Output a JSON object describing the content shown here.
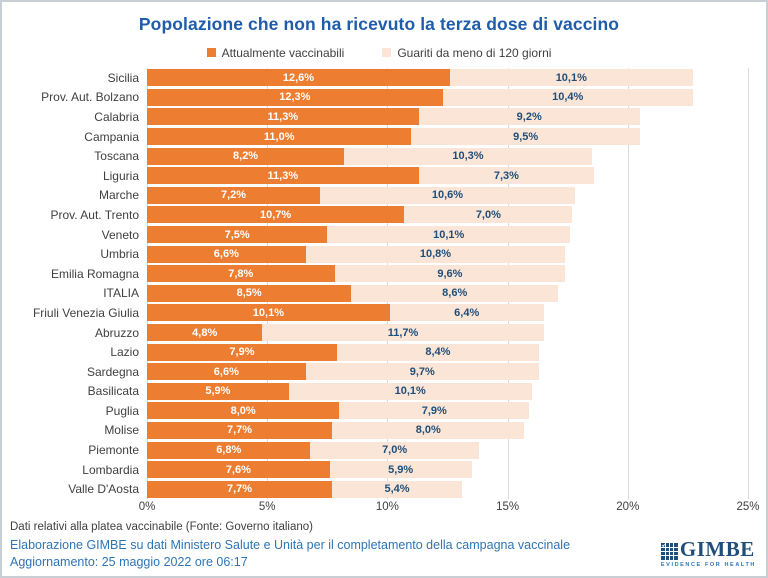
{
  "title": "Popolazione che non ha ricevuto la terza dose di vaccino",
  "legend": [
    {
      "label": "Attualmente vaccinabili",
      "color": "#ED7D31"
    },
    {
      "label": "Guariti da meno di 120 giorni",
      "color": "#FBE5D6"
    }
  ],
  "chart_data": {
    "type": "bar",
    "orientation": "horizontal",
    "stacked": true,
    "title": "Popolazione che non ha ricevuto la terza dose di vaccino",
    "categories": [
      "Sicilia",
      "Prov. Aut. Bolzano",
      "Calabria",
      "Campania",
      "Toscana",
      "Liguria",
      "Marche",
      "Prov. Aut. Trento",
      "Veneto",
      "Umbria",
      "Emilia Romagna",
      "ITALIA",
      "Friuli Venezia Giulia",
      "Abruzzo",
      "Lazio",
      "Sardegna",
      "Basilicata",
      "Puglia",
      "Molise",
      "Piemonte",
      "Lombardia",
      "Valle D'Aosta"
    ],
    "series": [
      {
        "name": "Attualmente vaccinabili",
        "color": "#ED7D31",
        "label_color": "#FFFFFF",
        "values": [
          12.6,
          12.3,
          11.3,
          11.0,
          8.2,
          11.3,
          7.2,
          10.7,
          7.5,
          6.6,
          7.8,
          8.5,
          10.1,
          4.8,
          7.9,
          6.6,
          5.9,
          8.0,
          7.7,
          6.8,
          7.6,
          7.7
        ]
      },
      {
        "name": "Guariti da meno di 120 giorni",
        "color": "#FBE5D6",
        "label_color": "#1F4E79",
        "values": [
          10.1,
          10.4,
          9.2,
          9.5,
          10.3,
          7.3,
          10.6,
          7.0,
          10.1,
          10.8,
          9.6,
          8.6,
          6.4,
          11.7,
          8.4,
          9.7,
          10.1,
          7.9,
          8.0,
          7.0,
          5.9,
          5.4
        ]
      }
    ],
    "xlim": [
      0,
      25
    ],
    "x_ticks": [
      "0%",
      "5%",
      "10%",
      "15%",
      "20%",
      "25%"
    ],
    "x_tick_values": [
      0,
      5,
      10,
      15,
      20,
      25
    ],
    "grid": true,
    "legend_position": "top",
    "value_label_format": "comma-decimal-percent"
  },
  "footer": {
    "note": "Dati relativi alla platea vaccinabile (Fonte: Governo italiano)",
    "source": "Elaborazione GIMBE su dati Ministero Salute e Unità per il completamento della campagna vaccinale",
    "update": "Aggiornamento: 25 maggio 2022 ore 06:17",
    "logo": {
      "name": "GIMBE",
      "tagline": "EVIDENCE FOR HEALTH"
    }
  },
  "colors": {
    "title": "#1F5CA9",
    "series1": "#ED7D31",
    "series2": "#FBE5D6",
    "value_label_on_orange": "#FFFFFF",
    "value_label_on_peach": "#1F4E79",
    "gridline": "#D9D9D9",
    "axis_text": "#404040",
    "footer_blue": "#2E75B6",
    "logo_blue": "#1F4E79",
    "frame_border": "#C9CED4"
  }
}
